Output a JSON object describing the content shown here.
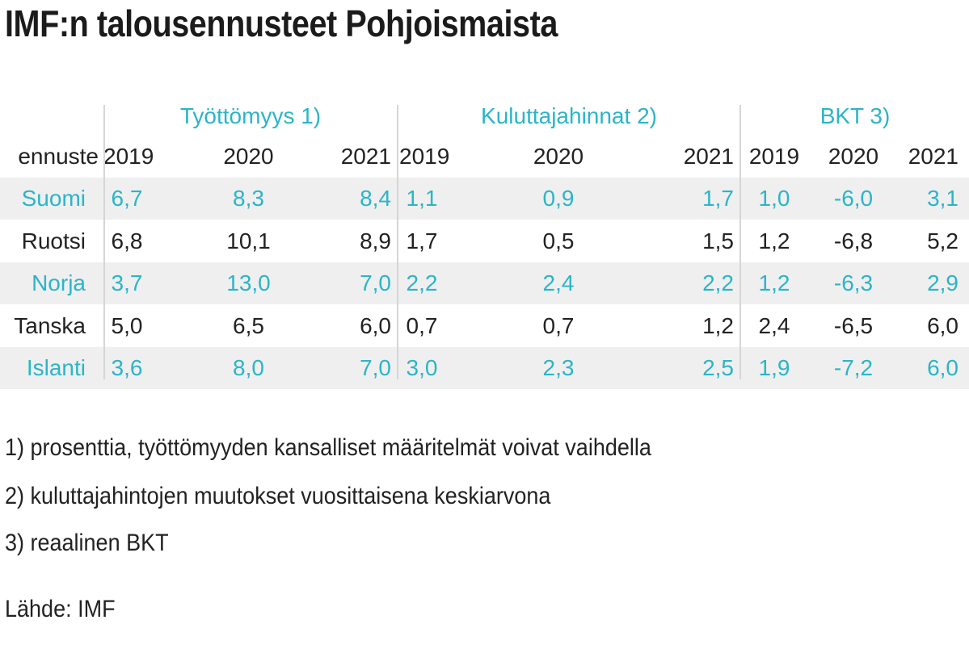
{
  "title": "IMF:n talousennusteet Pohjoismaista",
  "chart_data": {
    "type": "table",
    "groups": [
      "Työttömyys 1)",
      "Kuluttajahinnat 2)",
      "BKT 3)"
    ],
    "header": [
      "ennuste",
      "2019",
      "2020",
      "2021",
      "2019",
      "2020",
      "2021",
      "2019",
      "2020",
      "2021"
    ],
    "rows": [
      {
        "country": "Suomi",
        "values": [
          "6,7",
          "8,3",
          "8,4",
          "1,1",
          "0,9",
          "1,7",
          "1,0",
          "-6,0",
          "3,1"
        ]
      },
      {
        "country": "Ruotsi",
        "values": [
          "6,8",
          "10,1",
          "8,9",
          "1,7",
          "0,5",
          "1,5",
          "1,2",
          "-6,8",
          "5,2"
        ]
      },
      {
        "country": "Norja",
        "values": [
          "3,7",
          "13,0",
          "7,0",
          "2,2",
          "2,4",
          "2,2",
          "1,2",
          "-6,3",
          "2,9"
        ]
      },
      {
        "country": "Tanska",
        "values": [
          "5,0",
          "6,5",
          "6,0",
          "0,7",
          "0,7",
          "1,2",
          "2,4",
          "-6,5",
          "6,0"
        ]
      },
      {
        "country": "Islanti",
        "values": [
          "3,6",
          "8,0",
          "7,0",
          "3,0",
          "2,3",
          "2,5",
          "1,9",
          "-7,2",
          "6,0"
        ]
      }
    ]
  },
  "notes": [
    "1) prosenttia, työttömyyden kansalliset määritelmät voivat vaihdella",
    "2) kuluttajahintojen muutokset vuosittaisena keskiarvona",
    "3) reaalinen BKT"
  ],
  "source": "Lähde: IMF",
  "colors": {
    "accent": "#2bb5c8",
    "text": "#222222",
    "stripe": "#efefef",
    "divider": "#d6d6d6"
  }
}
